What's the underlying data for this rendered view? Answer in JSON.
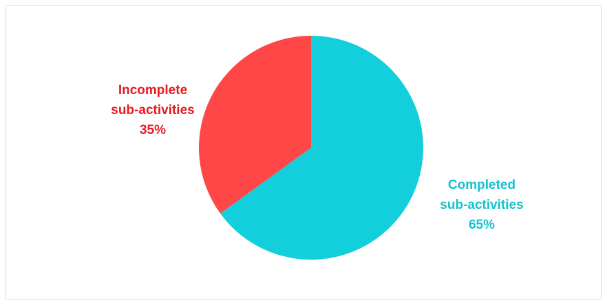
{
  "chart_data": {
    "type": "pie",
    "title": "",
    "slices": [
      {
        "name_lines": [
          "Completed",
          "sub-activities"
        ],
        "value": 65,
        "value_label": "65%",
        "color": "#12cfdb"
      },
      {
        "name_lines": [
          "Incomplete",
          "sub-activities"
        ],
        "value": 35,
        "value_label": "35%",
        "color": "#ff4747"
      }
    ],
    "label_colors": {
      "completed": "#12c2cf",
      "incomplete": "#e8191f"
    },
    "legend": "none",
    "start_angle_deg": 0,
    "direction": "clockwise"
  }
}
